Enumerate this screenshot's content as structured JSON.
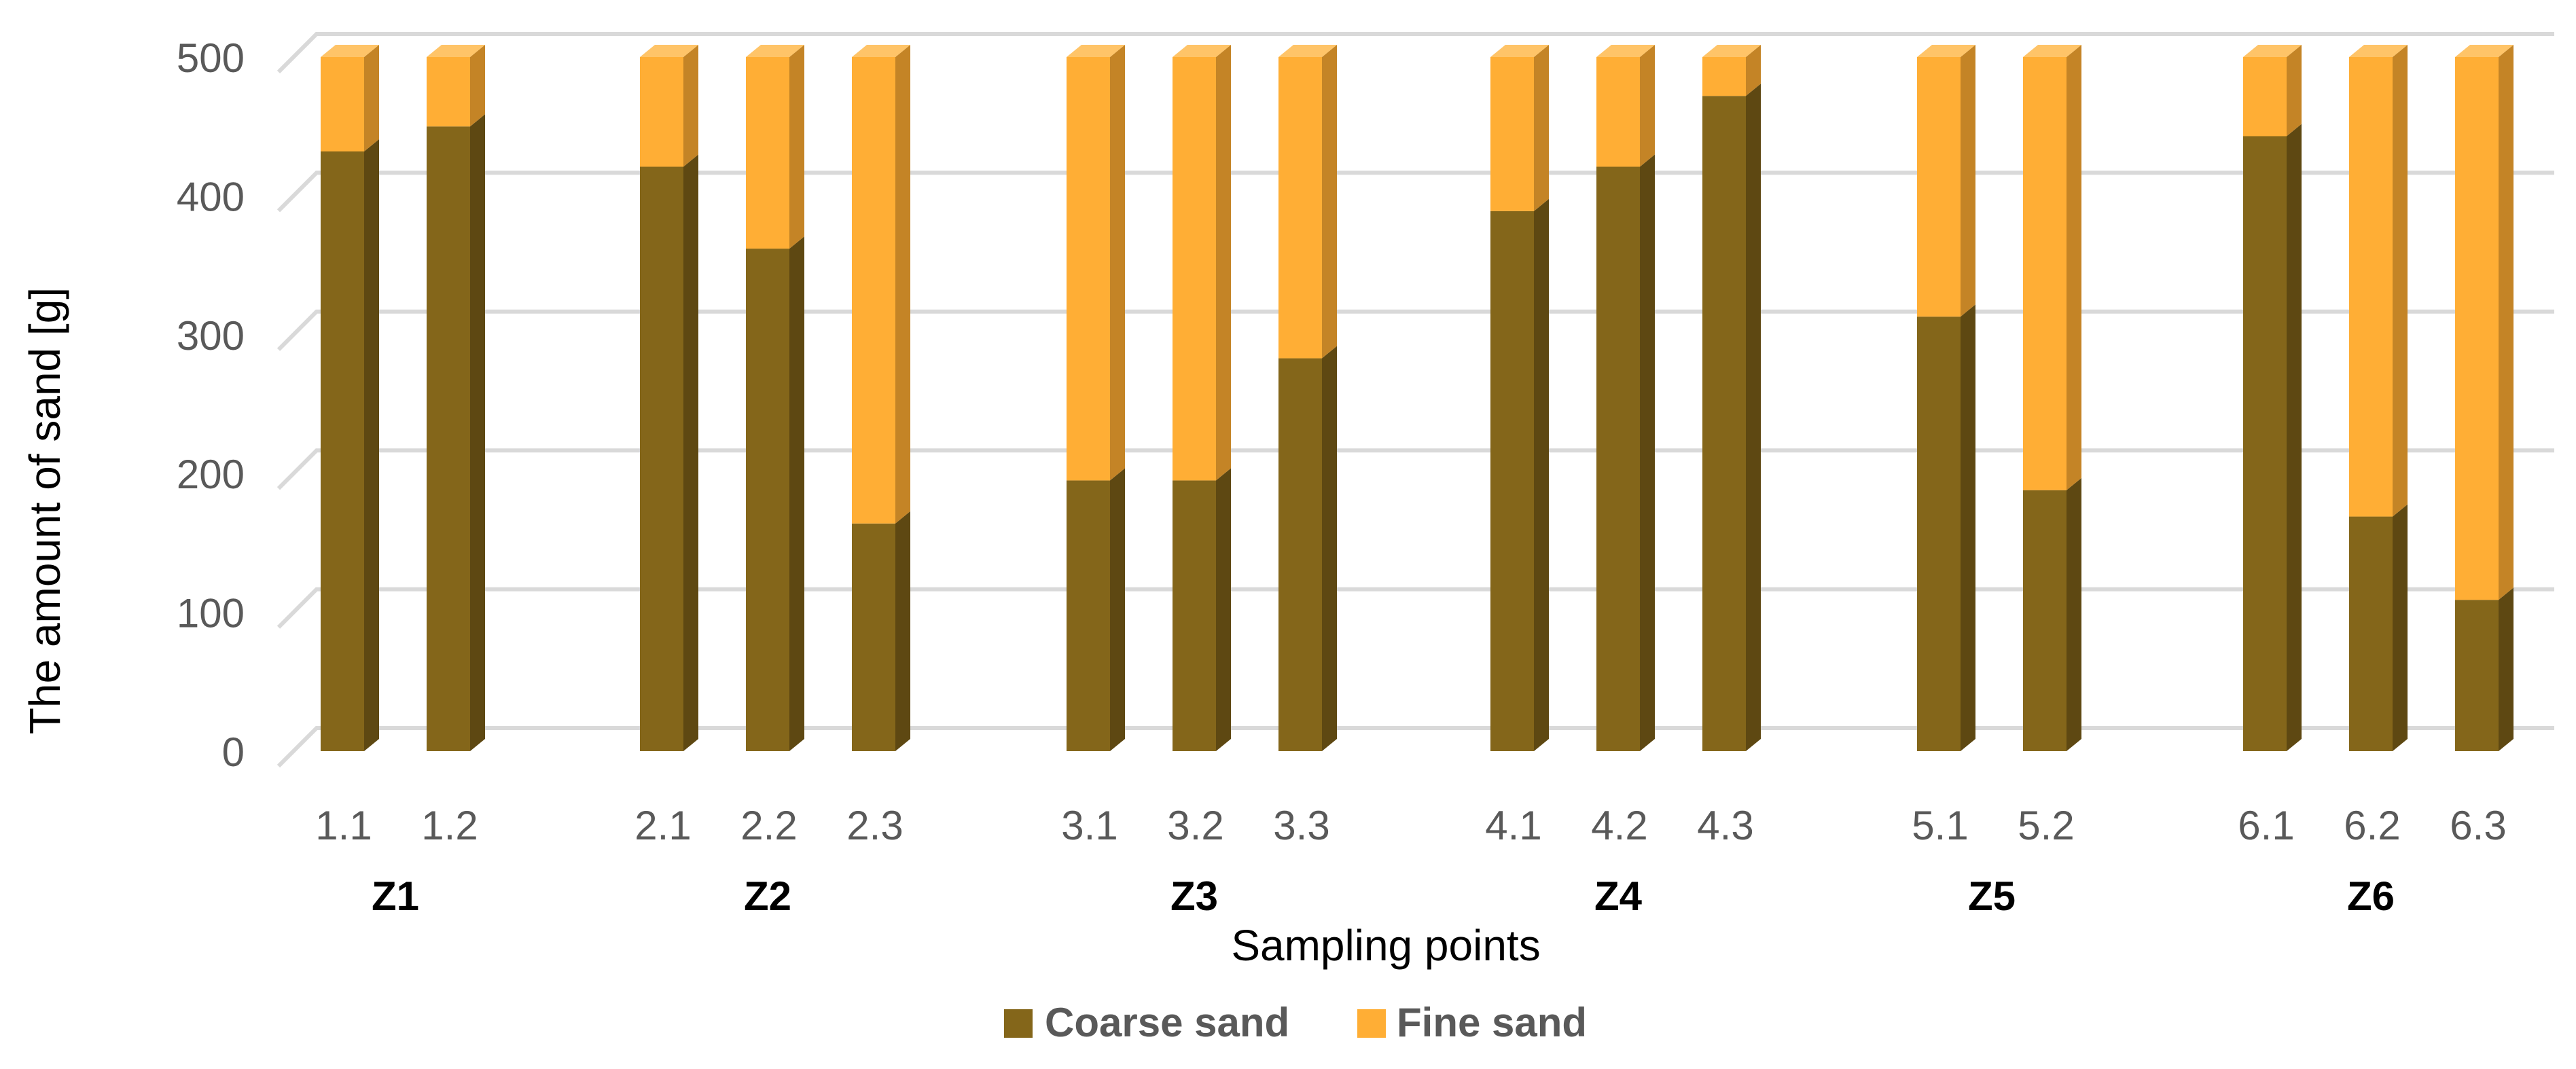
{
  "chart_data": {
    "type": "bar",
    "stacked": true,
    "three_d": true,
    "ylabel": "The amount of sand [g]",
    "xlabel": "Sampling points",
    "ylim": [
      0,
      500
    ],
    "yticks": [
      0,
      100,
      200,
      300,
      400,
      500
    ],
    "grid": true,
    "legend_position": "bottom",
    "groups": [
      {
        "name": "Z1",
        "categories": [
          "1.1",
          "1.2"
        ]
      },
      {
        "name": "Z2",
        "categories": [
          "2.1",
          "2.2",
          "2.3"
        ]
      },
      {
        "name": "Z3",
        "categories": [
          "3.1",
          "3.2",
          "3.3"
        ]
      },
      {
        "name": "Z4",
        "categories": [
          "4.1",
          "4.2",
          "4.3"
        ]
      },
      {
        "name": "Z5",
        "categories": [
          "5.1",
          "5.2"
        ]
      },
      {
        "name": "Z6",
        "categories": [
          "6.1",
          "6.2",
          "6.3"
        ]
      }
    ],
    "categories": [
      "1.1",
      "1.2",
      "2.1",
      "2.2",
      "2.3",
      "3.1",
      "3.2",
      "3.3",
      "4.1",
      "4.2",
      "4.3",
      "5.1",
      "5.2",
      "6.1",
      "6.2",
      "6.3"
    ],
    "series": [
      {
        "name": "Coarse sand",
        "color": "#84661A",
        "values": [
          432,
          450,
          421,
          362,
          164,
          195,
          195,
          283,
          389,
          421,
          472,
          313,
          188,
          443,
          169,
          109
        ]
      },
      {
        "name": "Fine sand",
        "color": "#FFAE35",
        "values": [
          68,
          50,
          79,
          138,
          336,
          305,
          305,
          217,
          111,
          79,
          28,
          187,
          312,
          57,
          331,
          391
        ]
      }
    ],
    "colors": {
      "coarse_front": "#84661A",
      "coarse_side": "#5E4812",
      "coarse_top": "#9C7B2A",
      "fine_front": "#FFAE35",
      "fine_side": "#C48426",
      "fine_top": "#FFC468",
      "grid": "#D9D9D9",
      "axis_text": "#595959"
    }
  }
}
